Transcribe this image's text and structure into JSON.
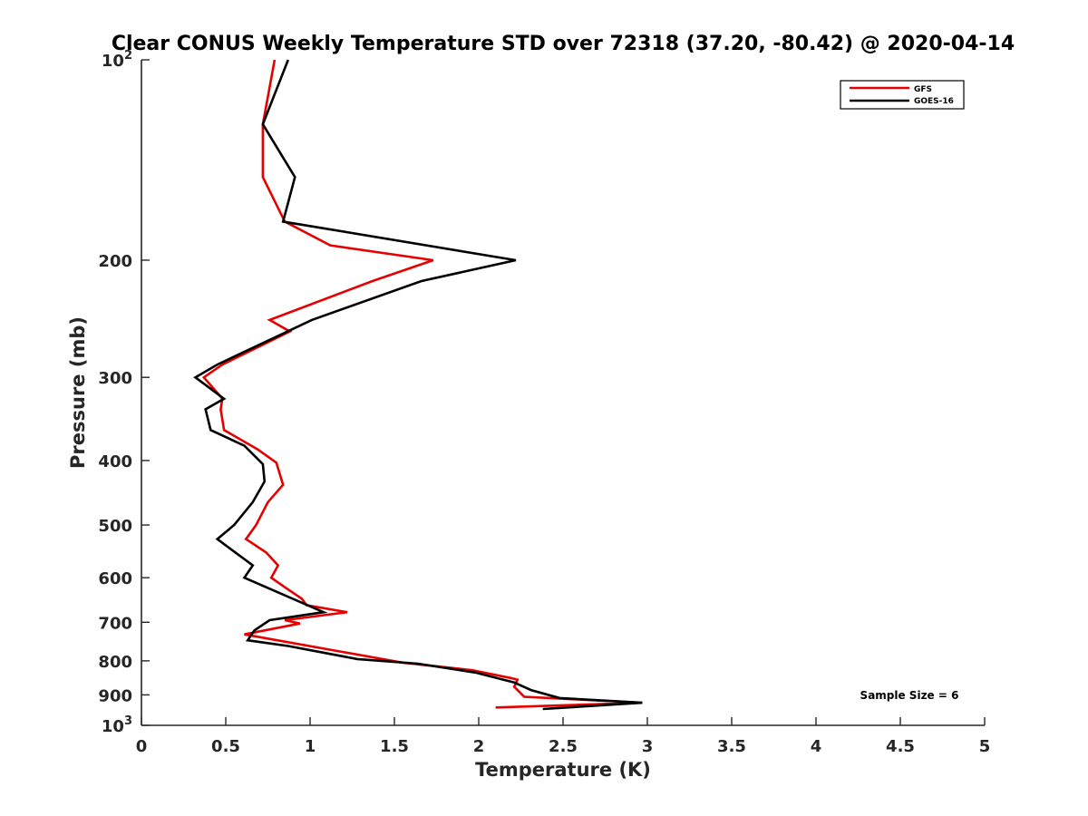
{
  "chart_data": {
    "type": "line",
    "title": "Clear CONUS Weekly Temperature STD over 72318 (37.20, -80.42) @ 2020-04-14",
    "xlabel": "Temperature (K)",
    "ylabel": "Pressure (mb)",
    "xlim": [
      0,
      5
    ],
    "ylim": [
      100,
      1000
    ],
    "y_scale": "log",
    "y_reversed": true,
    "x_ticks": [
      0,
      0.5,
      1,
      1.5,
      2,
      2.5,
      3,
      3.5,
      4,
      4.5,
      5
    ],
    "x_tick_labels": [
      "0",
      "0.5",
      "1",
      "1.5",
      "2",
      "2.5",
      "3",
      "3.5",
      "4",
      "4.5",
      "5"
    ],
    "y_ticks": [
      100,
      200,
      300,
      400,
      500,
      600,
      700,
      800,
      900,
      1000
    ],
    "y_tick_labels": [
      {
        "base": "10",
        "exp": "2"
      },
      {
        "base": "200",
        "exp": ""
      },
      {
        "base": "300",
        "exp": ""
      },
      {
        "base": "400",
        "exp": ""
      },
      {
        "base": "500",
        "exp": ""
      },
      {
        "base": "600",
        "exp": ""
      },
      {
        "base": "700",
        "exp": ""
      },
      {
        "base": "800",
        "exp": ""
      },
      {
        "base": "900",
        "exp": ""
      },
      {
        "base": "10",
        "exp": "3"
      }
    ],
    "grid": false,
    "legend_position": "top-right",
    "annotation": "Sample Size = 6",
    "series": [
      {
        "name": "GFS",
        "color": "#e60000",
        "points": [
          {
            "x": 0.79,
            "p": 100
          },
          {
            "x": 0.72,
            "p": 125
          },
          {
            "x": 0.72,
            "p": 150
          },
          {
            "x": 0.85,
            "p": 175
          },
          {
            "x": 1.12,
            "p": 190
          },
          {
            "x": 1.73,
            "p": 200
          },
          {
            "x": 1.37,
            "p": 215
          },
          {
            "x": 0.76,
            "p": 246
          },
          {
            "x": 0.88,
            "p": 256
          },
          {
            "x": 0.48,
            "p": 287
          },
          {
            "x": 0.37,
            "p": 300
          },
          {
            "x": 0.48,
            "p": 323
          },
          {
            "x": 0.47,
            "p": 335
          },
          {
            "x": 0.49,
            "p": 360
          },
          {
            "x": 0.69,
            "p": 385
          },
          {
            "x": 0.8,
            "p": 403
          },
          {
            "x": 0.84,
            "p": 435
          },
          {
            "x": 0.75,
            "p": 462
          },
          {
            "x": 0.68,
            "p": 500
          },
          {
            "x": 0.62,
            "p": 525
          },
          {
            "x": 0.74,
            "p": 550
          },
          {
            "x": 0.81,
            "p": 575
          },
          {
            "x": 0.77,
            "p": 600
          },
          {
            "x": 0.87,
            "p": 625
          },
          {
            "x": 0.95,
            "p": 645
          },
          {
            "x": 0.98,
            "p": 660
          },
          {
            "x": 1.22,
            "p": 676
          },
          {
            "x": 0.85,
            "p": 695
          },
          {
            "x": 0.94,
            "p": 703
          },
          {
            "x": 0.61,
            "p": 730
          },
          {
            "x": 1.55,
            "p": 805
          },
          {
            "x": 1.96,
            "p": 826
          },
          {
            "x": 2.19,
            "p": 849
          },
          {
            "x": 2.23,
            "p": 854
          },
          {
            "x": 2.21,
            "p": 875
          },
          {
            "x": 2.27,
            "p": 906
          },
          {
            "x": 2.97,
            "p": 925
          },
          {
            "x": 2.1,
            "p": 940
          }
        ]
      },
      {
        "name": "GOES-16",
        "color": "#000000",
        "points": [
          {
            "x": 0.87,
            "p": 100
          },
          {
            "x": 0.72,
            "p": 125
          },
          {
            "x": 0.91,
            "p": 150
          },
          {
            "x": 0.84,
            "p": 175
          },
          {
            "x": 2.22,
            "p": 200
          },
          {
            "x": 1.66,
            "p": 215
          },
          {
            "x": 1.01,
            "p": 246
          },
          {
            "x": 0.45,
            "p": 287
          },
          {
            "x": 0.32,
            "p": 300
          },
          {
            "x": 0.49,
            "p": 323
          },
          {
            "x": 0.38,
            "p": 335
          },
          {
            "x": 0.41,
            "p": 360
          },
          {
            "x": 0.61,
            "p": 380
          },
          {
            "x": 0.72,
            "p": 405
          },
          {
            "x": 0.73,
            "p": 430
          },
          {
            "x": 0.66,
            "p": 462
          },
          {
            "x": 0.55,
            "p": 500
          },
          {
            "x": 0.45,
            "p": 525
          },
          {
            "x": 0.66,
            "p": 575
          },
          {
            "x": 0.61,
            "p": 600
          },
          {
            "x": 1.08,
            "p": 676
          },
          {
            "x": 0.76,
            "p": 695
          },
          {
            "x": 0.67,
            "p": 720
          },
          {
            "x": 0.63,
            "p": 745
          },
          {
            "x": 0.87,
            "p": 760
          },
          {
            "x": 1.28,
            "p": 795
          },
          {
            "x": 1.64,
            "p": 808
          },
          {
            "x": 1.98,
            "p": 833
          },
          {
            "x": 2.21,
            "p": 862
          },
          {
            "x": 2.31,
            "p": 885
          },
          {
            "x": 2.48,
            "p": 910
          },
          {
            "x": 2.97,
            "p": 925
          },
          {
            "x": 2.38,
            "p": 945
          }
        ]
      }
    ]
  }
}
